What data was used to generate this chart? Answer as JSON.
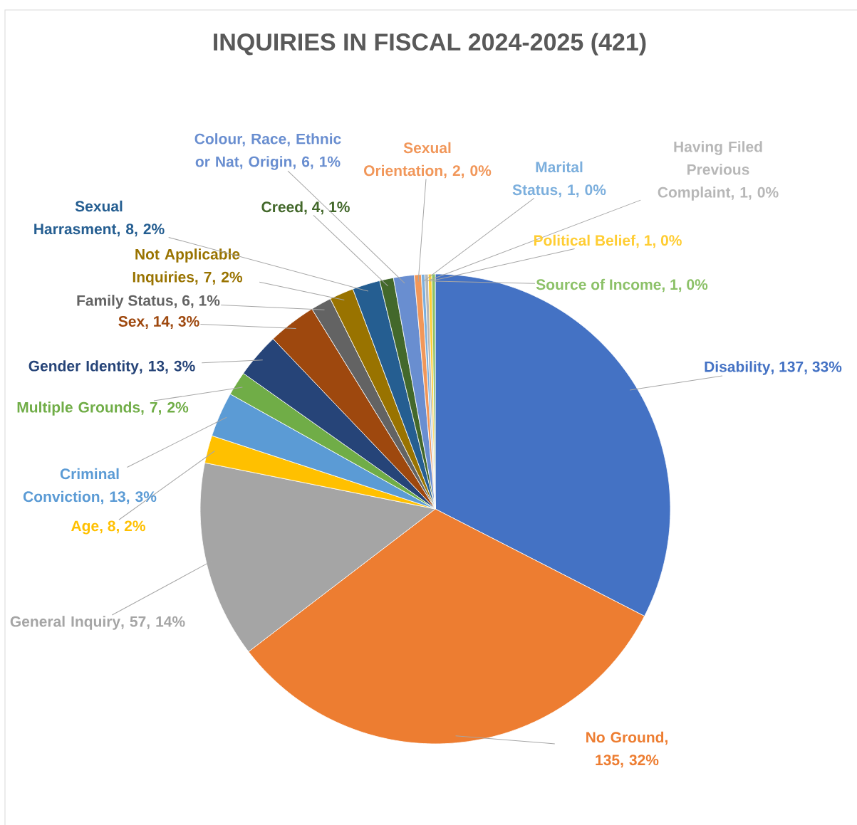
{
  "chart_data": {
    "type": "pie",
    "title": "INQUIRIES IN FISCAL 2024-2025 (421)",
    "categories": [
      "Disability",
      "No Ground",
      "General Inquiry",
      "Age",
      "Criminal Conviction",
      "Multiple Grounds",
      "Gender Identity",
      "Sex",
      "Family Status",
      "Not Applicable Inquiries",
      "Sexual Harrasment",
      "Creed",
      "Colour, Race, Ethnic or Nat, Origin",
      "Sexual Orientation",
      "Marital Status",
      "Having Filed Previous Complaint",
      "Political Belief",
      "Source of Income"
    ],
    "values": [
      137,
      135,
      57,
      8,
      13,
      7,
      13,
      14,
      6,
      7,
      8,
      4,
      6,
      2,
      1,
      1,
      1,
      1
    ],
    "value_labels": [
      ", 137, 33%",
      ", 135, 32%",
      ", 57, 14%",
      ", 8, 2%",
      ", 13, 3%",
      ", 7, 2%",
      ", 13, 3%",
      ", 14, 3%",
      ", 6, 1%",
      ", 7, 2%",
      ", 8, 2%",
      ", 4, 1%",
      ", 6, 1%",
      ", 2, 0%",
      ", 1, 0%",
      ", 1, 0%",
      ", 1, 0%",
      ", 1, 0%"
    ],
    "colors": [
      "#4472c4",
      "#ed7d31",
      "#a5a5a5",
      "#ffc000",
      "#5b9bd5",
      "#70ad47",
      "#264478",
      "#9e480e",
      "#636363",
      "#997300",
      "#255e91",
      "#43682b",
      "#698ed0",
      "#f1975a",
      "#7cafdd",
      "#b7b7b7",
      "#ffcd33",
      "#8cc168"
    ]
  }
}
